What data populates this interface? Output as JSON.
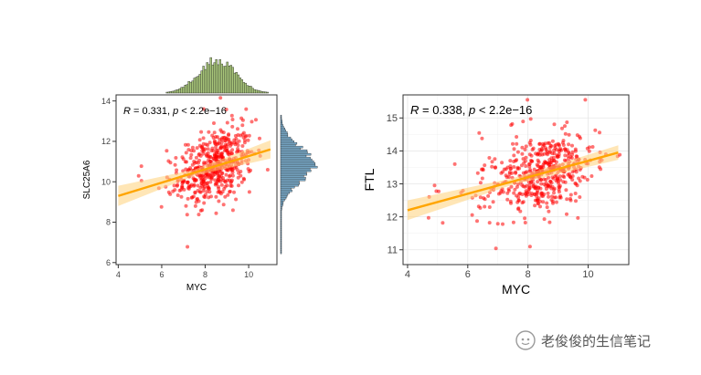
{
  "chart_data": [
    {
      "type": "scatter",
      "id": "left",
      "title": "",
      "xlabel": "MYC",
      "ylabel": "SLC25A6",
      "xlim": [
        3.9,
        11.3
      ],
      "ylim": [
        5.9,
        14.3
      ],
      "xticks": [
        4,
        6,
        8,
        10
      ],
      "yticks": [
        6,
        8,
        10,
        12,
        14
      ],
      "grid": false,
      "marginal_histograms": true,
      "annotation": {
        "r_symbol": "R",
        "r_value": " = 0.331, ",
        "p_symbol": "p",
        "p_value": " < 2.2e−16"
      },
      "fit": {
        "x": [
          4.0,
          11.0
        ],
        "y": [
          9.3,
          11.6
        ],
        "band": [
          0.5,
          0.15,
          0.45
        ]
      },
      "colors": {
        "points": "#ff0000",
        "fit": "#ffa500",
        "band": "#ffd27a",
        "top_hist": "#a9c77a",
        "right_hist": "#7fb3d5"
      }
    },
    {
      "type": "scatter",
      "id": "right",
      "title": "",
      "xlabel": "MYC",
      "ylabel": "FTL",
      "xlim": [
        3.85,
        11.35
      ],
      "ylim": [
        10.55,
        15.7
      ],
      "xticks": [
        4,
        6,
        8,
        10
      ],
      "yticks": [
        11,
        12,
        13,
        14,
        15
      ],
      "grid": true,
      "marginal_histograms": false,
      "annotation": {
        "r_symbol": "R",
        "r_value": " = 0.338, ",
        "p_symbol": "p",
        "p_value": " < 2.2e−16"
      },
      "fit": {
        "x": [
          4.0,
          11.0
        ],
        "y": [
          12.2,
          13.95
        ],
        "band": [
          0.3,
          0.1,
          0.22
        ]
      },
      "colors": {
        "points": "#ff0000",
        "fit": "#ffa500",
        "band": "#ffd27a"
      }
    }
  ],
  "watermark": {
    "text": "老俊俊的生信笔记",
    "icon": "wechat-icon"
  }
}
